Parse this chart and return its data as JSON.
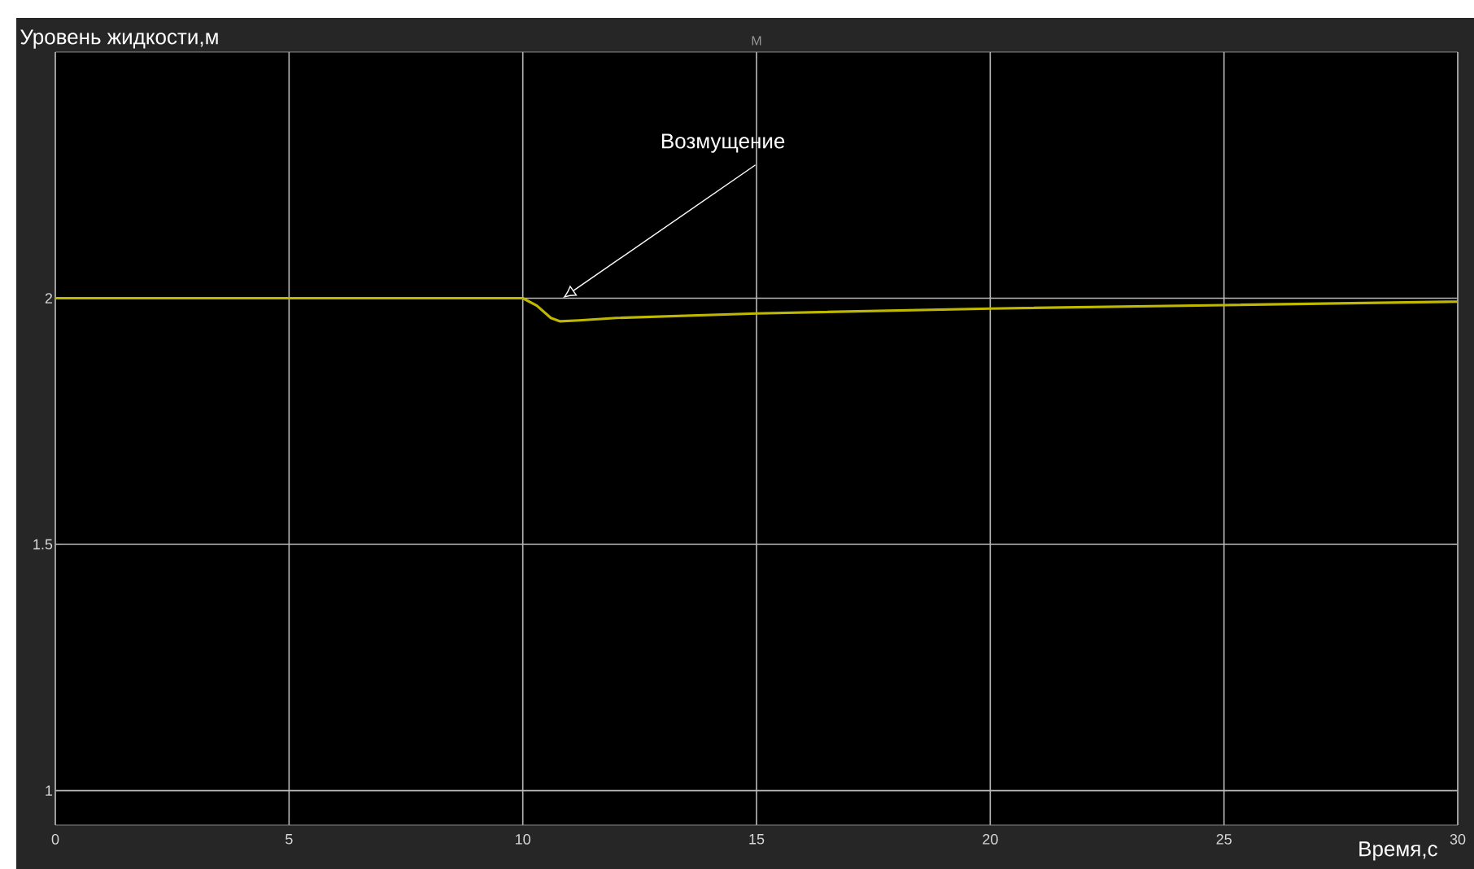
{
  "chart_data": {
    "type": "line",
    "title": "M",
    "xlabel": "Время,с",
    "ylabel": "Уровень жидкости,м",
    "annotations": [
      "Возмущение"
    ],
    "x": [
      0,
      5,
      10,
      10.3,
      10.6,
      10.8,
      11.2,
      12,
      15,
      20,
      25,
      30
    ],
    "series": [
      {
        "color": "#bfb800",
        "values": [
          2.0,
          2.0,
          2.0,
          1.985,
          1.96,
          1.953,
          1.955,
          1.96,
          1.969,
          1.979,
          1.986,
          1.993
        ]
      }
    ],
    "xlim": [
      0,
      30
    ],
    "ylim": [
      0.93,
      2.5
    ],
    "xticks": [
      0,
      5,
      10,
      15,
      20,
      25,
      30
    ],
    "yticks": [
      1,
      1.5,
      2
    ],
    "grid": true,
    "legend": false
  }
}
